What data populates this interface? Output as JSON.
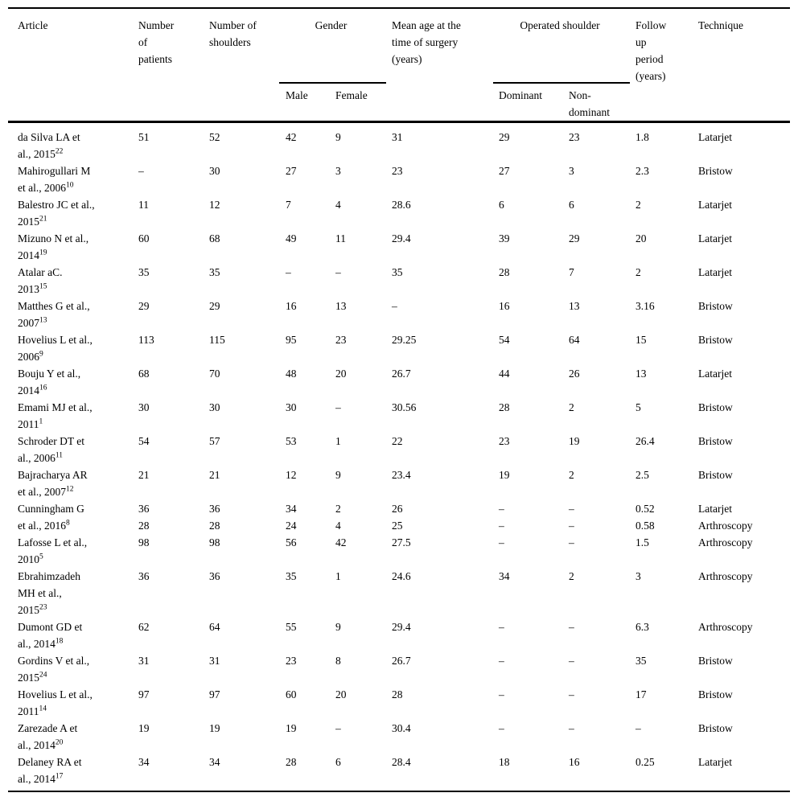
{
  "table": {
    "header": {
      "article": "Article",
      "patients": "Number\nof\npatients",
      "shoulders": "Number of\nshoulders",
      "gender": "Gender",
      "male": "Male",
      "female": "Female",
      "mean_age": "Mean age at the\ntime of surgery\n(years)",
      "operated_shoulder": "Operated shoulder",
      "dominant": "Dominant",
      "non_dominant": "Non-\ndominant",
      "follow_up": "Follow\nup\nperiod\n(years)",
      "technique": "Technique"
    },
    "rows": [
      {
        "article_lines": [
          "da Silva LA et",
          "al., 2015"
        ],
        "ref": "22",
        "values": [
          [
            "51",
            "52",
            "42",
            "9",
            "31",
            "29",
            "23",
            "1.8",
            "Latarjet"
          ]
        ]
      },
      {
        "article_lines": [
          "Mahirogullari M",
          "et al., 2006"
        ],
        "ref": "10",
        "values": [
          [
            "–",
            "30",
            "27",
            "3",
            "23",
            "27",
            "3",
            "2.3",
            "Bristow"
          ]
        ]
      },
      {
        "article_lines": [
          "Balestro JC et al.,",
          "2015"
        ],
        "ref": "21",
        "values": [
          [
            "11",
            "12",
            "7",
            "4",
            "28.6",
            "6",
            "6",
            "2",
            "Latarjet"
          ]
        ]
      },
      {
        "article_lines": [
          "Mizuno N et al.,",
          "2014"
        ],
        "ref": "19",
        "values": [
          [
            "60",
            "68",
            "49",
            "11",
            "29.4",
            "39",
            "29",
            "20",
            "Latarjet"
          ]
        ]
      },
      {
        "article_lines": [
          "Atalar aC.",
          "2013"
        ],
        "ref": "15",
        "values": [
          [
            "35",
            "35",
            "–",
            "–",
            "35",
            "28",
            "7",
            "2",
            "Latarjet"
          ]
        ]
      },
      {
        "article_lines": [
          "Matthes G et al.,",
          "2007"
        ],
        "ref": "13",
        "values": [
          [
            "29",
            "29",
            "16",
            "13",
            "–",
            "16",
            "13",
            "3.16",
            "Bristow"
          ]
        ]
      },
      {
        "article_lines": [
          "Hovelius L et al.,",
          "2006"
        ],
        "ref": "9",
        "values": [
          [
            "113",
            "115",
            "95",
            "23",
            "29.25",
            "54",
            "64",
            "15",
            "Bristow"
          ]
        ]
      },
      {
        "article_lines": [
          "Bouju Y et al.,",
          "2014"
        ],
        "ref": "16",
        "values": [
          [
            "68",
            "70",
            "48",
            "20",
            "26.7",
            "44",
            "26",
            "13",
            "Latarjet"
          ]
        ]
      },
      {
        "article_lines": [
          "Emami MJ et al.,",
          "2011"
        ],
        "ref": "1",
        "values": [
          [
            "30",
            "30",
            "30",
            "–",
            "30.56",
            "28",
            "2",
            "5",
            "Bristow"
          ]
        ]
      },
      {
        "article_lines": [
          "Schroder DT et",
          "al., 2006"
        ],
        "ref": "11",
        "values": [
          [
            "54",
            "57",
            "53",
            "1",
            "22",
            "23",
            "19",
            "26.4",
            "Bristow"
          ]
        ]
      },
      {
        "article_lines": [
          "Bajracharya AR",
          "et al., 2007"
        ],
        "ref": "12",
        "values": [
          [
            "21",
            "21",
            "12",
            "9",
            "23.4",
            "19",
            "2",
            "2.5",
            "Bristow"
          ]
        ]
      },
      {
        "article_lines": [
          "Cunningham G",
          "et al., 2016"
        ],
        "ref": "8",
        "values": [
          [
            "36",
            "36",
            "34",
            "2",
            "26",
            "–",
            "–",
            "0.52",
            "Latarjet"
          ],
          [
            "28",
            "28",
            "24",
            "4",
            "25",
            "–",
            "–",
            "0.58",
            "Arthroscopy"
          ]
        ]
      },
      {
        "article_lines": [
          "Lafosse L et al.,",
          "2010"
        ],
        "ref": "5",
        "values": [
          [
            "98",
            "98",
            "56",
            "42",
            "27.5",
            "–",
            "–",
            "1.5",
            "Arthroscopy"
          ]
        ]
      },
      {
        "article_lines": [
          "Ebrahimzadeh",
          "MH et al.,",
          "2015"
        ],
        "ref": "23",
        "values": [
          [
            "36",
            "36",
            "35",
            "1",
            "24.6",
            "34",
            "2",
            "3",
            "Arthroscopy"
          ]
        ]
      },
      {
        "article_lines": [
          "Dumont GD et",
          "al., 2014"
        ],
        "ref": "18",
        "values": [
          [
            "62",
            "64",
            "55",
            "9",
            "29.4",
            "–",
            "–",
            "6.3",
            "Arthroscopy"
          ]
        ]
      },
      {
        "article_lines": [
          "Gordins V et al.,",
          "2015"
        ],
        "ref": "24",
        "values": [
          [
            "31",
            "31",
            "23",
            "8",
            "26.7",
            "–",
            "–",
            "35",
            "Bristow"
          ]
        ]
      },
      {
        "article_lines": [
          "Hovelius L et al.,",
          "2011"
        ],
        "ref": "14",
        "values": [
          [
            "97",
            "97",
            "60",
            "20",
            "28",
            "–",
            "–",
            "17",
            "Bristow"
          ]
        ]
      },
      {
        "article_lines": [
          "Zarezade A et",
          "al., 2014"
        ],
        "ref": "20",
        "values": [
          [
            "19",
            "19",
            "19",
            "–",
            "30.4",
            "–",
            "–",
            "–",
            "Bristow"
          ]
        ]
      },
      {
        "article_lines": [
          "Delaney RA et",
          "al., 2014"
        ],
        "ref": "17",
        "values": [
          [
            "34",
            "34",
            "28",
            "6",
            "28.4",
            "18",
            "16",
            "0.25",
            "Latarjet"
          ]
        ]
      }
    ]
  }
}
